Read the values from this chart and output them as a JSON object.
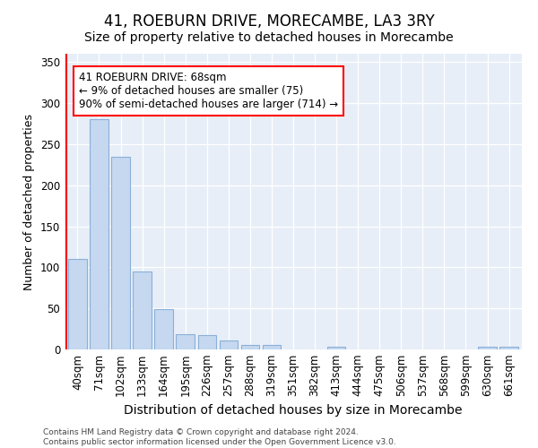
{
  "title": "41, ROEBURN DRIVE, MORECAMBE, LA3 3RY",
  "subtitle": "Size of property relative to detached houses in Morecambe",
  "xlabel": "Distribution of detached houses by size in Morecambe",
  "ylabel": "Number of detached properties",
  "categories": [
    "40sqm",
    "71sqm",
    "102sqm",
    "133sqm",
    "164sqm",
    "195sqm",
    "226sqm",
    "257sqm",
    "288sqm",
    "319sqm",
    "351sqm",
    "382sqm",
    "413sqm",
    "444sqm",
    "475sqm",
    "506sqm",
    "537sqm",
    "568sqm",
    "599sqm",
    "630sqm",
    "661sqm"
  ],
  "values": [
    110,
    280,
    235,
    95,
    49,
    19,
    18,
    11,
    5,
    5,
    0,
    0,
    3,
    0,
    0,
    0,
    0,
    0,
    0,
    3,
    3
  ],
  "bar_color": "#c5d8f0",
  "bar_edge_color": "#8ab0d8",
  "red_line_x": -0.5,
  "annotation_text": "41 ROEBURN DRIVE: 68sqm\n← 9% of detached houses are smaller (75)\n90% of semi-detached houses are larger (714) →",
  "annotation_box_facecolor": "white",
  "annotation_box_edgecolor": "red",
  "ylim": [
    0,
    360
  ],
  "yticks": [
    0,
    50,
    100,
    150,
    200,
    250,
    300,
    350
  ],
  "footer_text": "Contains HM Land Registry data © Crown copyright and database right 2024.\nContains public sector information licensed under the Open Government Licence v3.0.",
  "plot_bg_color": "#e8eef8",
  "title_fontsize": 12,
  "subtitle_fontsize": 10,
  "xlabel_fontsize": 10,
  "ylabel_fontsize": 9,
  "tick_fontsize": 8.5,
  "annotation_fontsize": 8.5
}
